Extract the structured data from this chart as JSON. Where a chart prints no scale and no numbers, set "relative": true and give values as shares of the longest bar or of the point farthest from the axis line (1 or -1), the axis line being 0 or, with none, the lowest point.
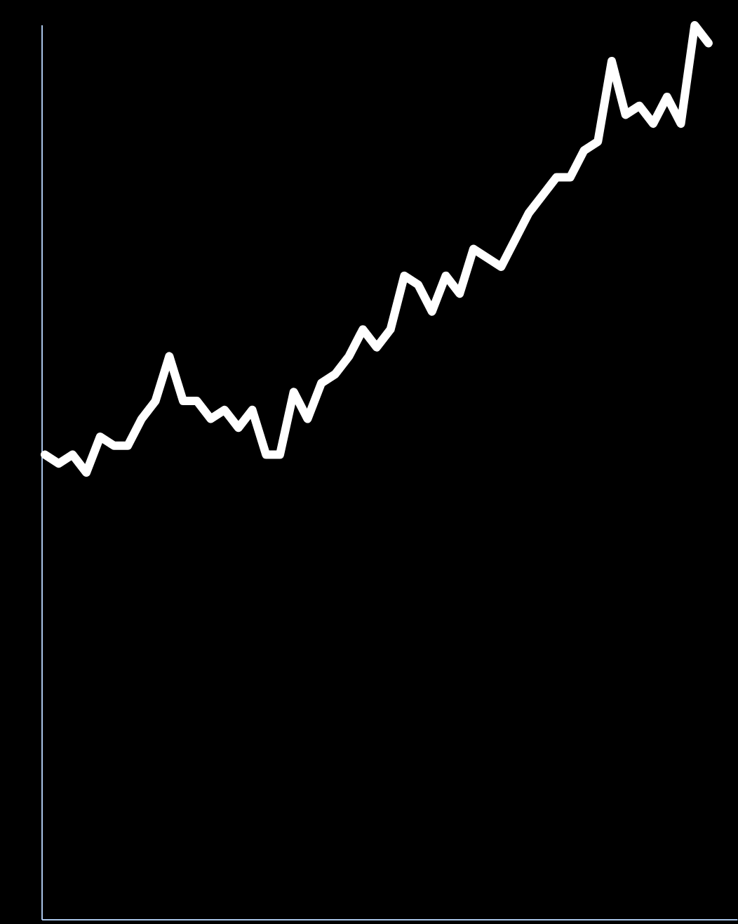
{
  "chart_data": {
    "type": "line",
    "relative": true,
    "marker": "none",
    "line_style": "solid",
    "categories": [
      null,
      null,
      null,
      null,
      null,
      null,
      null,
      null,
      null,
      null,
      null,
      null,
      null,
      null,
      null,
      null,
      null,
      null,
      null,
      null,
      null,
      null,
      null,
      null,
      null,
      null,
      null,
      null,
      null,
      null,
      null,
      null,
      null,
      null,
      null,
      null,
      null,
      null,
      null,
      null,
      null,
      null,
      null,
      null,
      null,
      null,
      null,
      null,
      null
    ],
    "series": [
      {
        "color": "#ffffff",
        "values": [
          0.52,
          0.51,
          0.52,
          0.5,
          0.54,
          0.53,
          0.53,
          0.56,
          0.58,
          0.63,
          0.58,
          0.58,
          0.56,
          0.57,
          0.55,
          0.57,
          0.52,
          0.52,
          0.59,
          0.56,
          0.6,
          0.61,
          0.63,
          0.66,
          0.64,
          0.66,
          0.72,
          0.71,
          0.68,
          0.72,
          0.7,
          0.75,
          0.74,
          0.73,
          0.76,
          0.79,
          0.81,
          0.83,
          0.83,
          0.86,
          0.87,
          0.96,
          0.9,
          0.91,
          0.89,
          0.92,
          0.89,
          1,
          0.98
        ]
      }
    ]
  }
}
